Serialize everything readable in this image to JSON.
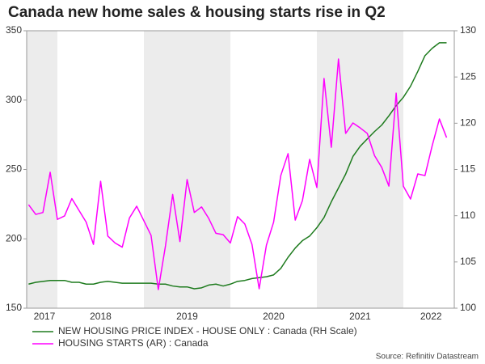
{
  "chart_data": {
    "type": "line",
    "title": "Canada new home sales & housing starts rise in Q2",
    "source": "Source: Refinitiv Datastream",
    "legend": "bottom",
    "shading": true,
    "x": [
      2017.667,
      2017.75,
      2017.833,
      2017.917,
      2018.0,
      2018.083,
      2018.167,
      2018.25,
      2018.333,
      2018.417,
      2018.5,
      2018.583,
      2018.667,
      2018.75,
      2018.833,
      2018.917,
      2019.0,
      2019.083,
      2019.167,
      2019.25,
      2019.333,
      2019.417,
      2019.5,
      2019.583,
      2019.667,
      2019.75,
      2019.833,
      2019.917,
      2020.0,
      2020.083,
      2020.167,
      2020.25,
      2020.333,
      2020.417,
      2020.5,
      2020.583,
      2020.667,
      2020.75,
      2020.833,
      2020.917,
      2021.0,
      2021.083,
      2021.167,
      2021.25,
      2021.333,
      2021.417,
      2021.5,
      2021.583,
      2021.667,
      2021.75,
      2021.833,
      2021.917,
      2022.0,
      2022.083,
      2022.167,
      2022.25,
      2022.333,
      2022.417,
      2022.5
    ],
    "xlim": [
      2017.645,
      2022.589
    ],
    "xticks": [
      {
        "value": 2017.85,
        "label": "2017"
      },
      {
        "value": 2018.5,
        "label": "2018"
      },
      {
        "value": 2019.5,
        "label": "2019"
      },
      {
        "value": 2020.5,
        "label": "2020"
      },
      {
        "value": 2021.5,
        "label": "2021"
      },
      {
        "value": 2022.32,
        "label": "2022"
      }
    ],
    "ylim": [
      150,
      350
    ],
    "yticks": [
      150,
      200,
      250,
      300,
      350
    ],
    "y2lim": [
      100,
      130
    ],
    "y2ticks": [
      100,
      105,
      110,
      115,
      120,
      125,
      130
    ],
    "series": [
      {
        "name": "NEW HOUSING PRICE INDEX - HOUSE ONLY : Canada (RH Scale)",
        "color": "#1e7b1e",
        "axis": "y2",
        "values": [
          102.6,
          102.8,
          102.9,
          103.0,
          103.0,
          103.0,
          102.8,
          102.8,
          102.6,
          102.6,
          102.8,
          102.9,
          102.8,
          102.7,
          102.7,
          102.7,
          102.7,
          102.7,
          102.6,
          102.6,
          102.4,
          102.3,
          102.3,
          102.1,
          102.2,
          102.5,
          102.6,
          102.4,
          102.6,
          102.9,
          103.0,
          103.2,
          103.3,
          103.4,
          103.6,
          104.3,
          105.5,
          106.5,
          107.3,
          107.8,
          108.7,
          109.8,
          111.5,
          113.0,
          114.5,
          116.4,
          117.5,
          118.3,
          119.1,
          119.8,
          120.8,
          121.9,
          122.8,
          124.0,
          125.6,
          127.3,
          128.1,
          128.7,
          128.7
        ]
      },
      {
        "name": "HOUSING STARTS (AR) : Canada",
        "color": "#ff00ff",
        "values": [
          224.6,
          217.6,
          219,
          248,
          214,
          216.5,
          229,
          220.5,
          212,
          196,
          241.5,
          202,
          197,
          194,
          215,
          223.5,
          213,
          202.5,
          163.4,
          195,
          232,
          198,
          242.7,
          219,
          223,
          214.7,
          204,
          203,
          197,
          216,
          210.7,
          196,
          164,
          195.5,
          212,
          245.6,
          261.4,
          213.5,
          227.5,
          257.3,
          237,
          315.6,
          266,
          329.6,
          276,
          283.5,
          280,
          276,
          260,
          251.5,
          238,
          305,
          238,
          228.7,
          246.8,
          245.6,
          267,
          286.4,
          273
        ]
      }
    ]
  }
}
